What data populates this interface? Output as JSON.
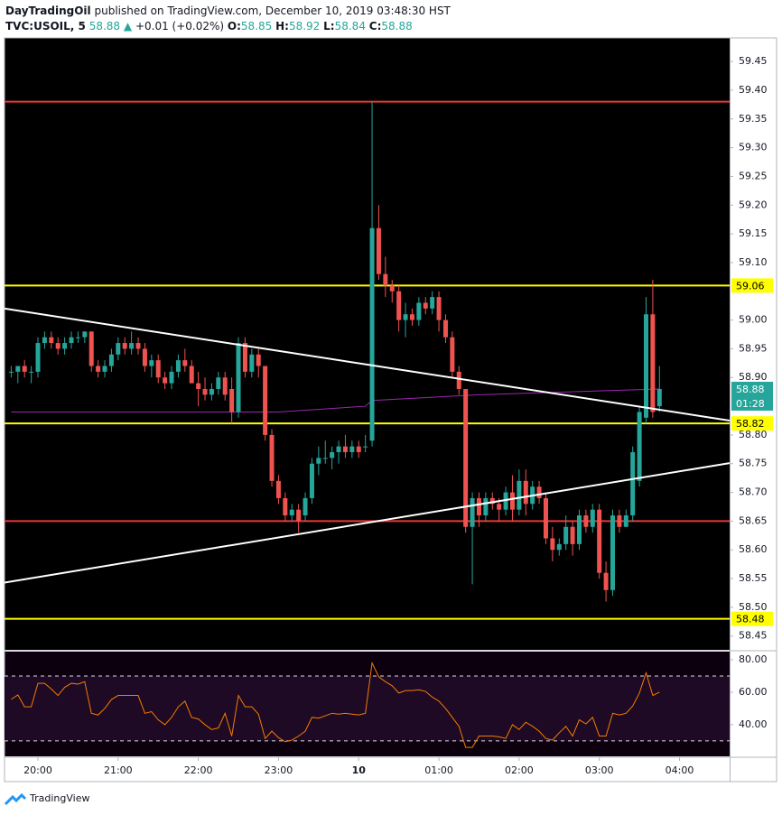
{
  "header": {
    "publisher": "DayTradingOil",
    "published": "published on TradingView.com, December 10, 2019 03:48:30 HST",
    "symbol": "TVC:USOIL, 5",
    "last": "58.88",
    "change": "+0.01 (+0.02%)",
    "ohlc": [
      {
        "label": "O:",
        "value": "58.85"
      },
      {
        "label": "H:",
        "value": "58.92"
      },
      {
        "label": "L:",
        "value": "58.84"
      },
      {
        "label": "C:",
        "value": "58.88"
      }
    ]
  },
  "footer": {
    "brand": "TradingView"
  },
  "chart_data": {
    "type": "candlestick",
    "up_color": "#26a69a",
    "down_color": "#ef5350",
    "xlim": [
      -1,
      107.5
    ],
    "ylim": [
      58.426,
      59.491
    ],
    "xticks": [
      {
        "value": 4,
        "label": "20:00"
      },
      {
        "value": 16,
        "label": "21:00"
      },
      {
        "value": 28,
        "label": "22:00"
      },
      {
        "value": 40,
        "label": "23:00"
      },
      {
        "value": 52,
        "label": "10"
      },
      {
        "value": 64,
        "label": "01:00"
      },
      {
        "value": 76,
        "label": "02:00"
      },
      {
        "value": 88,
        "label": "03:00"
      },
      {
        "value": 100,
        "label": "04:00"
      }
    ],
    "yticks": [
      59.45,
      {
        "value": 59.4,
        "label": "59.40"
      },
      59.35,
      {
        "value": 59.3,
        "label": "59.30"
      },
      59.25,
      {
        "value": 59.2,
        "label": "59.20"
      },
      59.15,
      {
        "value": 59.1,
        "label": "59.10"
      },
      {
        "value": 59.0,
        "label": "59.00"
      },
      58.95,
      {
        "value": 58.9,
        "label": "58.90"
      },
      {
        "value": 58.8,
        "label": "58.80"
      },
      58.75,
      {
        "value": 58.7,
        "label": "58.70"
      },
      58.65,
      {
        "value": 58.6,
        "label": "58.60"
      },
      58.55,
      {
        "value": 58.5,
        "label": "58.50"
      },
      58.45
    ],
    "candles": [
      [
        58.91,
        58.92,
        58.9,
        58.91
      ],
      [
        58.91,
        58.92,
        58.89,
        58.92
      ],
      [
        58.92,
        58.93,
        58.9,
        58.91
      ],
      [
        58.91,
        58.92,
        58.89,
        58.91
      ],
      [
        58.91,
        58.97,
        58.9,
        58.96
      ],
      [
        58.96,
        58.98,
        58.95,
        58.97
      ],
      [
        58.97,
        58.98,
        58.95,
        58.96
      ],
      [
        58.96,
        58.97,
        58.94,
        58.95
      ],
      [
        58.95,
        58.97,
        58.94,
        58.96
      ],
      [
        58.96,
        58.98,
        58.95,
        58.97
      ],
      [
        58.97,
        58.98,
        58.96,
        58.97
      ],
      [
        58.97,
        58.98,
        58.96,
        58.98
      ],
      [
        58.98,
        58.98,
        58.91,
        58.92
      ],
      [
        58.92,
        58.93,
        58.9,
        58.91
      ],
      [
        58.91,
        58.93,
        58.9,
        58.92
      ],
      [
        58.92,
        58.95,
        58.91,
        58.94
      ],
      [
        58.94,
        58.97,
        58.93,
        58.96
      ],
      [
        58.96,
        58.97,
        58.94,
        58.95
      ],
      [
        58.95,
        58.98,
        58.94,
        58.96
      ],
      [
        58.96,
        58.97,
        58.94,
        58.95
      ],
      [
        58.95,
        58.96,
        58.91,
        58.92
      ],
      [
        58.92,
        58.94,
        58.9,
        58.93
      ],
      [
        58.93,
        58.94,
        58.89,
        58.9
      ],
      [
        58.9,
        58.91,
        58.88,
        58.89
      ],
      [
        58.89,
        58.92,
        58.88,
        58.91
      ],
      [
        58.91,
        58.94,
        58.9,
        58.93
      ],
      [
        58.93,
        58.95,
        58.91,
        58.92
      ],
      [
        58.92,
        58.93,
        58.89,
        58.89
      ],
      [
        58.89,
        58.91,
        58.85,
        58.88
      ],
      [
        58.88,
        58.9,
        58.86,
        58.87
      ],
      [
        58.87,
        58.89,
        58.86,
        58.88
      ],
      [
        58.88,
        58.91,
        58.87,
        58.9
      ],
      [
        58.9,
        58.91,
        58.86,
        58.87
      ],
      [
        58.88,
        58.9,
        58.82,
        58.84
      ],
      [
        58.84,
        58.97,
        58.83,
        58.96
      ],
      [
        58.96,
        58.97,
        58.9,
        58.91
      ],
      [
        58.91,
        58.95,
        58.9,
        58.94
      ],
      [
        58.94,
        58.95,
        58.9,
        58.92
      ],
      [
        58.92,
        58.92,
        58.79,
        58.8
      ],
      [
        58.8,
        58.81,
        58.71,
        58.72
      ],
      [
        58.72,
        58.73,
        58.68,
        58.69
      ],
      [
        58.69,
        58.7,
        58.65,
        58.66
      ],
      [
        58.66,
        58.68,
        58.65,
        58.67
      ],
      [
        58.67,
        58.68,
        58.63,
        58.65
      ],
      [
        58.66,
        58.7,
        58.65,
        58.69
      ],
      [
        58.69,
        58.76,
        58.68,
        58.75
      ],
      [
        58.75,
        58.78,
        58.73,
        58.76
      ],
      [
        58.76,
        58.79,
        58.75,
        58.76
      ],
      [
        58.76,
        58.78,
        58.74,
        58.77
      ],
      [
        58.77,
        58.79,
        58.75,
        58.78
      ],
      [
        58.78,
        58.8,
        58.76,
        58.77
      ],
      [
        58.77,
        58.79,
        58.76,
        58.78
      ],
      [
        58.78,
        58.79,
        58.76,
        58.77
      ],
      [
        58.78,
        58.8,
        58.77,
        58.78
      ],
      [
        58.79,
        59.38,
        58.78,
        59.16
      ],
      [
        59.16,
        59.2,
        59.07,
        59.08
      ],
      [
        59.08,
        59.11,
        59.04,
        59.06
      ],
      [
        59.06,
        59.07,
        59.03,
        59.05
      ],
      [
        59.05,
        59.06,
        58.98,
        59.0
      ],
      [
        59.0,
        59.03,
        58.97,
        59.01
      ],
      [
        59.01,
        59.02,
        58.99,
        59.0
      ],
      [
        59.0,
        59.04,
        58.99,
        59.03
      ],
      [
        59.03,
        59.04,
        59.01,
        59.02
      ],
      [
        59.02,
        59.05,
        59.01,
        59.04
      ],
      [
        59.04,
        59.05,
        58.98,
        59.0
      ],
      [
        59.0,
        59.01,
        58.96,
        58.97
      ],
      [
        58.97,
        58.98,
        58.9,
        58.91
      ],
      [
        58.91,
        58.92,
        58.87,
        58.88
      ],
      [
        58.88,
        58.88,
        58.63,
        58.64
      ],
      [
        58.64,
        58.7,
        58.54,
        58.69
      ],
      [
        58.69,
        58.7,
        58.64,
        58.66
      ],
      [
        58.66,
        58.7,
        58.65,
        58.69
      ],
      [
        58.69,
        58.7,
        58.67,
        58.68
      ],
      [
        58.68,
        58.69,
        58.65,
        58.67
      ],
      [
        58.67,
        58.71,
        58.66,
        58.7
      ],
      [
        58.7,
        58.73,
        58.65,
        58.67
      ],
      [
        58.67,
        58.74,
        58.66,
        58.72
      ],
      [
        58.72,
        58.74,
        58.66,
        58.68
      ],
      [
        58.68,
        58.72,
        58.67,
        58.71
      ],
      [
        58.71,
        58.72,
        58.68,
        58.69
      ],
      [
        58.69,
        58.7,
        58.61,
        58.62
      ],
      [
        58.62,
        58.64,
        58.58,
        58.6
      ],
      [
        58.6,
        58.62,
        58.59,
        58.61
      ],
      [
        58.61,
        58.66,
        58.6,
        58.64
      ],
      [
        58.64,
        58.65,
        58.59,
        58.61
      ],
      [
        58.61,
        58.67,
        58.6,
        58.66
      ],
      [
        58.66,
        58.67,
        58.63,
        58.64
      ],
      [
        58.64,
        58.68,
        58.63,
        58.67
      ],
      [
        58.67,
        58.68,
        58.55,
        58.56
      ],
      [
        58.56,
        58.58,
        58.51,
        58.53
      ],
      [
        58.53,
        58.67,
        58.52,
        58.66
      ],
      [
        58.66,
        58.67,
        58.63,
        58.64
      ],
      [
        58.64,
        58.67,
        58.64,
        58.66
      ],
      [
        58.66,
        58.78,
        58.65,
        58.77
      ],
      [
        58.72,
        58.85,
        58.71,
        58.84
      ],
      [
        58.83,
        59.04,
        58.82,
        59.01
      ],
      [
        59.01,
        59.07,
        58.83,
        58.84
      ],
      [
        58.85,
        58.92,
        58.84,
        58.88
      ]
    ],
    "ma": {
      "color": "#9c27b0",
      "x": [
        0,
        40,
        53,
        54,
        70,
        97
      ],
      "values": [
        58.84,
        58.84,
        58.85,
        58.86,
        58.87,
        58.88
      ]
    },
    "trendlines": [
      {
        "color": "#ffffff",
        "x": [
          -1,
          107.5
        ],
        "values": [
          59.02,
          58.825
        ]
      },
      {
        "color": "#ffffff",
        "x": [
          -1,
          107.5
        ],
        "values": [
          58.543,
          58.751
        ]
      }
    ],
    "levels": [
      {
        "value": 59.38,
        "color": "#e53935"
      },
      {
        "value": 59.06,
        "color": "#ffff00",
        "label": "59.06"
      },
      {
        "value": 58.82,
        "color": "#ffff00",
        "label": "58.82"
      },
      {
        "value": 58.65,
        "color": "#e53935"
      },
      {
        "value": 58.48,
        "color": "#ffff00",
        "label": "58.48"
      }
    ],
    "last_price": 58.88,
    "countdown": "01:28",
    "rsi": {
      "color": "#f57c00",
      "ylim": [
        20.5,
        85
      ],
      "band": [
        30,
        70
      ],
      "yticks": [
        {
          "value": 80,
          "label": "80.00"
        },
        {
          "value": 60,
          "label": "60.00"
        },
        {
          "value": 40,
          "label": "40.00"
        }
      ],
      "values": [
        55.6,
        58.3,
        51,
        51,
        65.5,
        65.5,
        62,
        58,
        63,
        65.5,
        65,
        66.5,
        47,
        46,
        50,
        55.5,
        58,
        58,
        58,
        58,
        47,
        48,
        43,
        40,
        44.5,
        51,
        54.5,
        44.5,
        43.5,
        40,
        37,
        38,
        47,
        33,
        58,
        51,
        51,
        46.5,
        31.5,
        36,
        32,
        29.5,
        30.5,
        33,
        36,
        44.5,
        44,
        45.5,
        47,
        46.5,
        47,
        46.5,
        46,
        47,
        78,
        69.5,
        66.5,
        64,
        59.5,
        61,
        61,
        61.5,
        60.5,
        57,
        54.5,
        50,
        44.5,
        39,
        26,
        26,
        33,
        33,
        33,
        32.5,
        31.5,
        40,
        37,
        41.5,
        39,
        36,
        31.5,
        30.5,
        35,
        39,
        33,
        43,
        40.5,
        44.5,
        33,
        33,
        47,
        46,
        47,
        51.5,
        59.5,
        72,
        58,
        60
      ]
    }
  }
}
